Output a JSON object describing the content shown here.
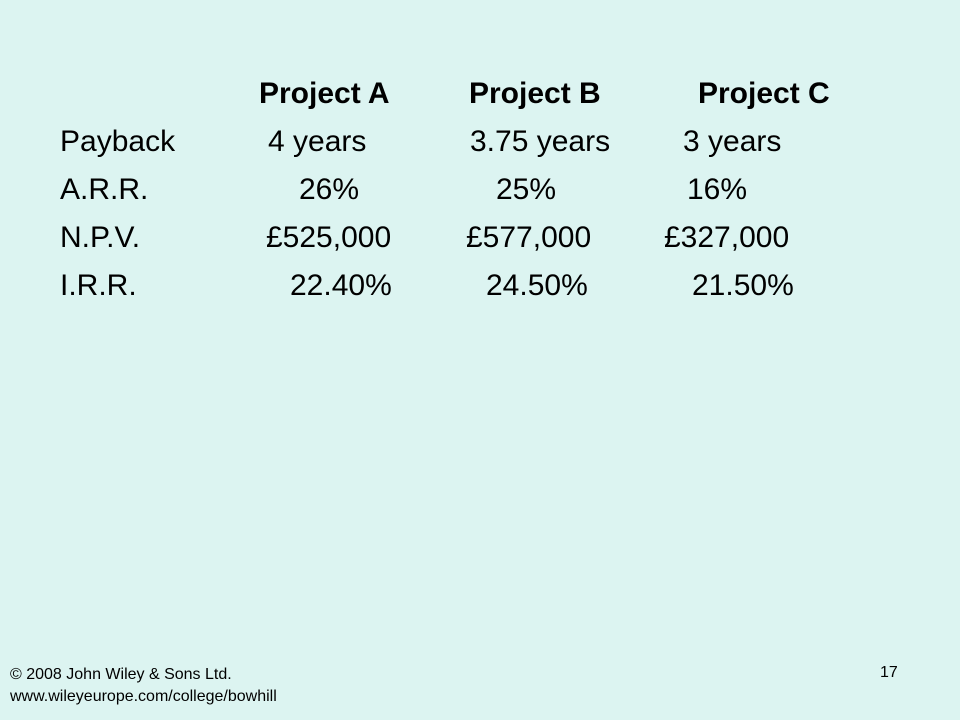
{
  "table": {
    "headers": [
      "Project A",
      "Project B",
      "Project C"
    ],
    "rows": [
      {
        "label": "Payback",
        "values": [
          "4 years",
          "3.75 years",
          "3 years"
        ]
      },
      {
        "label": "A.R.R.",
        "values": [
          "26%",
          "25%",
          "16%"
        ]
      },
      {
        "label": "N.P.V.",
        "values": [
          "£525,000",
          "£577,000",
          "£327,000"
        ]
      },
      {
        "label": "I.R.R.",
        "values": [
          "22.40%",
          "24.50%",
          "21.50%"
        ]
      }
    ]
  },
  "footer": {
    "copyright": "© 2008 John Wiley & Sons Ltd.",
    "url": "www.wileyeurope.com/college/bowhill",
    "slide_number": "17"
  }
}
